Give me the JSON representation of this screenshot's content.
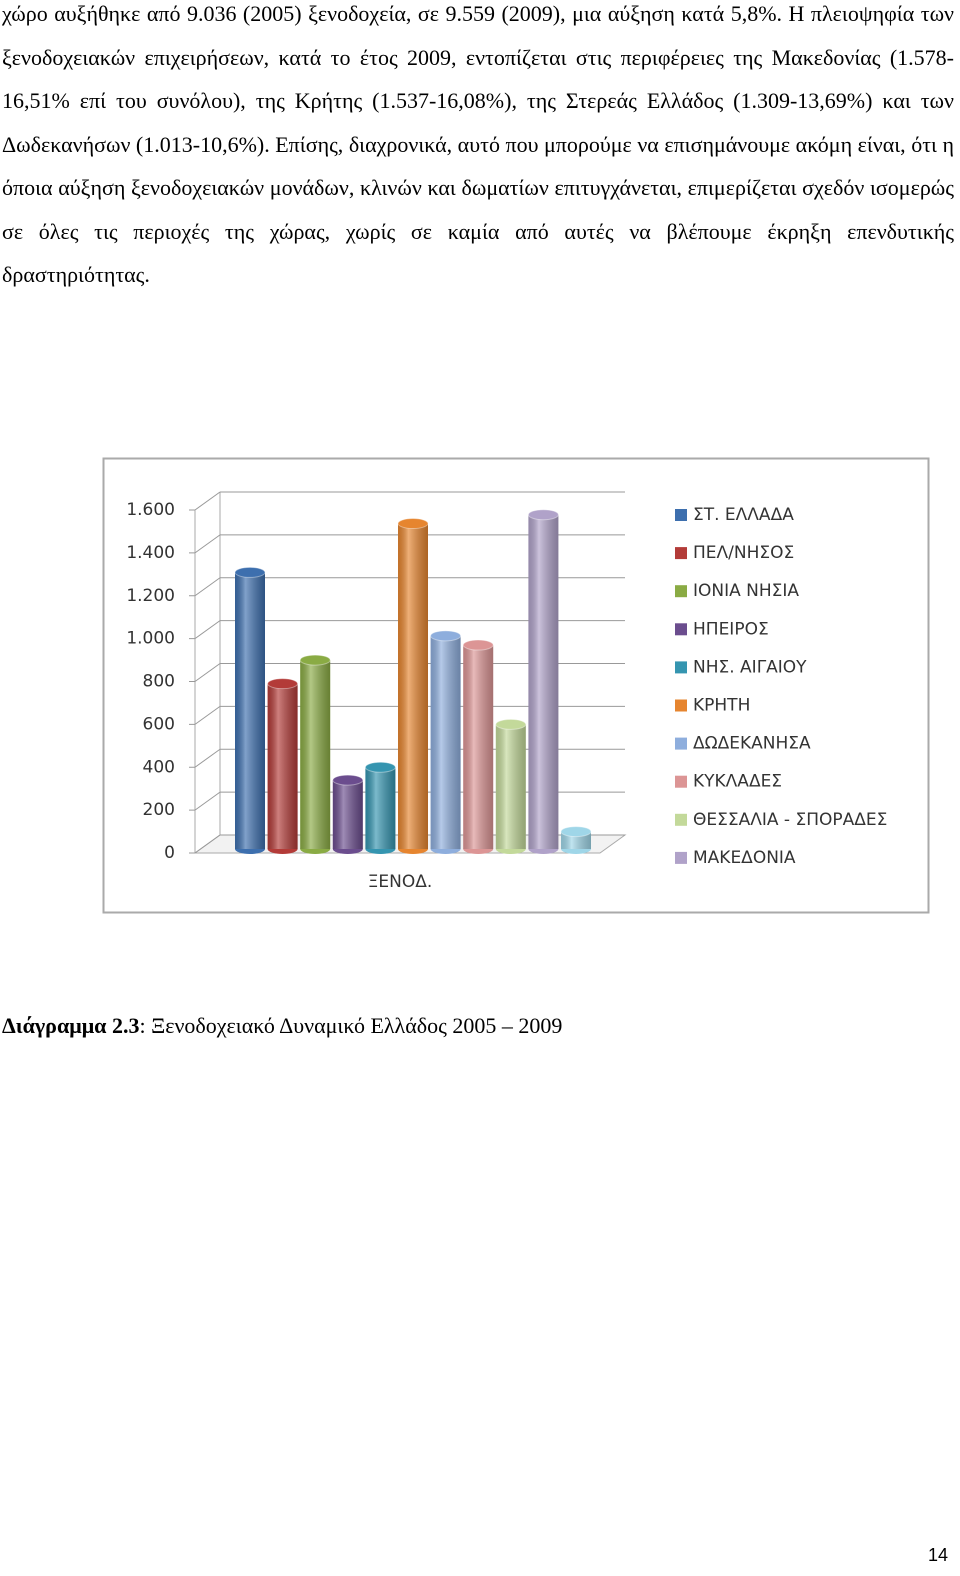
{
  "paragraph": "χώρο αυξήθηκε από 9.036 (2005) ξενοδοχεία, σε 9.559 (2009), μια αύξηση κατά 5,8%. Η πλειοψηφία των ξενοδοχειακών επιχειρήσεων, κατά το έτος 2009, εντοπίζεται στις περιφέρειες της Μακεδονίας (1.578-16,51% επί του συνόλου), της Κρήτης (1.537-16,08%), της Στερεάς Ελλάδος (1.309-13,69%) και των Δωδεκανήσων (1.013-10,6%). Επίσης, διαχρονικά, αυτό που μπορούμε να επισημάνουμε ακόμη είναι, ότι η όποια αύξηση ξενοδοχειακών μονάδων, κλινών και δωματίων επιτυγχάνεται, επιμερίζεται σχεδόν ισομερώς σε όλες τις περιοχές της χώρας, χωρίς σε καμία από αυτές να βλέπουμε έκρηξη επενδυτικής δραστηριότητας.",
  "chart_data": {
    "type": "bar",
    "categories": [
      "ΞΕΝΟΔ."
    ],
    "series": [
      {
        "name": "ΣΤ. ΕΛΛΑΔΑ",
        "color": "#3d6fae",
        "values": [
          1309
        ]
      },
      {
        "name": "ΠΕΛ/ΝΗΣΟΣ",
        "color": "#b33b38",
        "values": [
          790
        ]
      },
      {
        "name": "ΙΟΝΙΑ ΝΗΣΙΑ",
        "color": "#8aab44",
        "values": [
          900
        ]
      },
      {
        "name": "ΗΠΕΙΡΟΣ",
        "color": "#6b4d8e",
        "values": [
          340
        ]
      },
      {
        "name": "ΝΗΣ. ΑΙΓΑΙΟΥ",
        "color": "#3595b0",
        "values": [
          400
        ]
      },
      {
        "name": "ΚΡΗΤΗ",
        "color": "#e6852f",
        "values": [
          1537
        ]
      },
      {
        "name": "ΔΩΔΕΚΑΝΗΣΑ",
        "color": "#8eaedd",
        "values": [
          1013
        ]
      },
      {
        "name": "ΚΥΚΛΑΔΕΣ",
        "color": "#dc9595",
        "values": [
          970
        ]
      },
      {
        "name": "ΘΕΣΣΑΛΙΑ - ΣΠΟΡΑΔΕΣ",
        "color": "#c3d99a",
        "values": [
          600
        ]
      },
      {
        "name": "ΜΑΚΕΔΟΝΙΑ",
        "color": "#b0a2c9",
        "values": [
          1578
        ]
      },
      {
        "name": null,
        "color": "#9fd6e8",
        "values": [
          100
        ]
      }
    ],
    "ylim": [
      0,
      1600
    ],
    "yticks": [
      0,
      200,
      400,
      600,
      800,
      {
        "value": 1000,
        "label": "1.000"
      },
      {
        "value": 1200,
        "label": "1.200"
      },
      {
        "value": 1400,
        "label": "1.400"
      },
      {
        "value": 1600,
        "label": "1.600"
      }
    ],
    "grid": true,
    "legend": "right"
  },
  "caption": {
    "label": "Διάγραμμα 2.3",
    "text": ": Ξενοδοχειακό Δυναμικό Ελλάδος 2005 – 2009"
  },
  "page_number": "14"
}
